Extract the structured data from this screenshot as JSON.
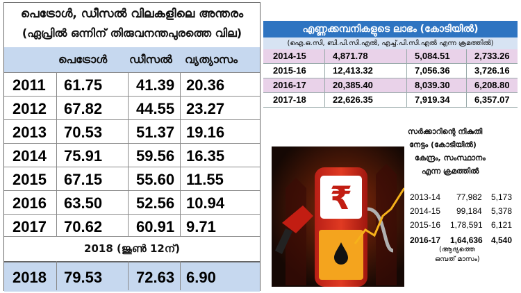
{
  "left_table": {
    "title": "പെട്രോൾ, ഡീസൽ വിലകളിലെ അന്തരം",
    "subtitle": "(ഏപ്രിൽ ഒന്നിന് തിരുവനന്തപുരത്തെ വില)",
    "headers": [
      "",
      "പെട്രോൾ",
      "ഡീസൽ",
      "വ്യത്യാസം"
    ],
    "rows": [
      [
        "2011",
        "61.75",
        "41.39",
        "20.36"
      ],
      [
        "2012",
        "67.82",
        "44.55",
        "23.27"
      ],
      [
        "2013",
        "70.53",
        "51.37",
        "19.16"
      ],
      [
        "2014",
        "75.91",
        "59.56",
        "16.35"
      ],
      [
        "2015",
        "67.15",
        "55.60",
        "11.55"
      ],
      [
        "2016",
        "63.50",
        "52.56",
        "10.94"
      ],
      [
        "2017",
        "70.62",
        "60.91",
        "9.71"
      ]
    ],
    "note": "2018 (ജൂൺ 12ന്)",
    "final_row": [
      "2018",
      "79.53",
      "72.63",
      "6.90"
    ],
    "header_color": "#c6d8ef"
  },
  "company_table": {
    "title": "എണ്ണക്കമ്പനികളുടെ ലാഭം (കോടിയിൽ)",
    "subtitle": "(ഐ.ഒ.സി, ബി.പി.സി.എൽ, എച്ച്.പി.സി.എൽ എന്ന ക്രമത്തിൽ)",
    "rows": [
      [
        "2014-15",
        "4,871.78",
        "5,084.51",
        "2,733.26"
      ],
      [
        "2015-16",
        "12,413.32",
        "7,056.36",
        "3,726.16"
      ],
      [
        "2016-17",
        "20,385.40",
        "8,039.30",
        "6,208.80"
      ],
      [
        "2017-18",
        "22,626.35",
        "7,919.34",
        "6,357.07"
      ]
    ],
    "header_color": "#2e74c1",
    "row_tint": "#e9d2e9"
  },
  "tax_block": {
    "title_lines": [
      "സർക്കാറിന്റെ നികുതി",
      "നേട്ടം (കോടിയിൽ)",
      "കേന്ദ്രം, സംസ്ഥാനം",
      "എന്ന ക്രമത്തിൽ"
    ],
    "rows": [
      [
        "2013-14",
        "77,982",
        "5,173"
      ],
      [
        "2014-15",
        "99,184",
        "5,378"
      ],
      [
        "2015-16",
        "1,78,591",
        "6,121"
      ],
      [
        "2016-17",
        "1,64,636",
        "4,540"
      ]
    ],
    "footnote_lines": [
      "(ആദ്യത്തെ",
      "ഒമ്പത് മാസം)"
    ]
  },
  "illustration": {
    "icon": "fuel-pump-rupee-icon",
    "symbol": "₹"
  }
}
